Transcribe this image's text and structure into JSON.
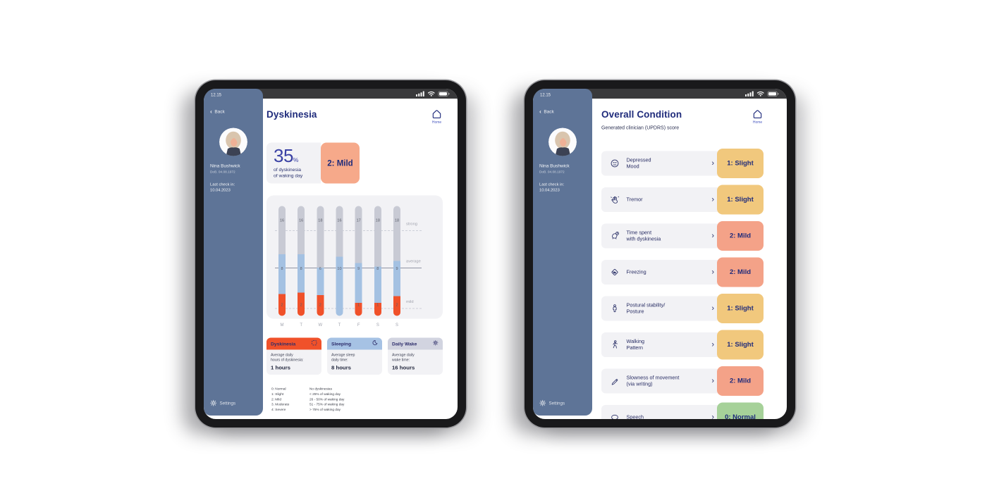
{
  "colors": {
    "navy": "#1f2b7b",
    "sidebar": "#5e7497",
    "salmon": "#f6a98a",
    "bar_gray": "#c8cad4",
    "bar_blue": "#a4c1e2",
    "bar_orange": "#f0512a",
    "badge_slight": "#f1c87d",
    "badge_mild": "#f4a288",
    "badge_normal": "#a6d199"
  },
  "sidebar": {
    "time": "12.15",
    "back_label": "Back",
    "patient_name": "Nina Bushwick",
    "patient_dob": "DoB. 04.08.1972",
    "last_check": "Last check in:\n10.04.2023",
    "settings_label": "Settings"
  },
  "status_icons": [
    "cellular-icon",
    "wifi-icon",
    "battery-icon"
  ],
  "left": {
    "title": "Dyskinesia",
    "home_label": "Home",
    "stat": {
      "value": "35",
      "unit": "%",
      "caption": "of dyskinesia\nof waking day",
      "severity_badge": "2: Mild"
    },
    "summary_cards": [
      {
        "title": "Dyskinesia",
        "icon": "frame-icon",
        "header_color": "#f0512a",
        "caption": "Average daily\nhours of dyskinesia:",
        "value": "1 hours"
      },
      {
        "title": "Sleeping",
        "icon": "moon-icon",
        "header_color": "#a6c2e4",
        "caption": "Average sleep\ndaily time:",
        "value": "8 hours"
      },
      {
        "title": "Daily Wake",
        "icon": "sun-icon",
        "header_color": "#d2d4e0",
        "caption": "Average daily\nwake time:",
        "value": "16 hours"
      }
    ],
    "legend": {
      "levels": [
        "0: Normal",
        "1: Slight",
        "2: Mild",
        "3. Moderate",
        "4: Severe"
      ],
      "descriptions": [
        "No dyskinesias",
        "< 25% of waking day",
        "26 - 50% of waking day",
        "51 - 75% of waking day",
        "> 75% of waking day"
      ]
    }
  },
  "right": {
    "title": "Overall Condition",
    "subtitle": "Generated clinician (UPDRS) score",
    "home_label": "Home",
    "score_colors": {
      "slight": "#f1c87d",
      "mild": "#f4a288",
      "normal": "#a6d199"
    },
    "rows": [
      {
        "icon": "depressed-mood-icon",
        "label": "Depressed\nMood",
        "score": "1: Slight",
        "level": "slight"
      },
      {
        "icon": "tremor-icon",
        "label": "Tremor",
        "score": "1: Slight",
        "level": "slight"
      },
      {
        "icon": "dyskinesia-time-icon",
        "label": "Time spent\nwith dyskinesia",
        "score": "2: Mild",
        "level": "mild"
      },
      {
        "icon": "freezing-icon",
        "label": "Freezing",
        "score": "2: Mild",
        "level": "mild"
      },
      {
        "icon": "posture-icon",
        "label": "Postural stability/\nPosture",
        "score": "1: Slight",
        "level": "slight"
      },
      {
        "icon": "walking-icon",
        "label": "Walking\nPattern",
        "score": "1: Slight",
        "level": "slight"
      },
      {
        "icon": "writing-icon",
        "label": "Slowness of movement\n(via writing)",
        "score": "2: Mild",
        "level": "mild"
      },
      {
        "icon": "speech-icon",
        "label": "Speech",
        "score": "0: Normal",
        "level": "normal"
      }
    ]
  },
  "chart_data": {
    "type": "bar",
    "subtype": "stacked-pill-columns",
    "categories": [
      "M",
      "T",
      "W",
      "T",
      "F",
      "S",
      "S"
    ],
    "series": [
      {
        "name": "strong",
        "color": "#c8cad4",
        "values": [
          16,
          16,
          18,
          16,
          17,
          18,
          18
        ]
      },
      {
        "name": "average",
        "color": "#a4c1e2",
        "values": [
          8,
          8,
          6,
          10,
          9,
          8,
          9
        ]
      },
      {
        "name": "mild",
        "color": "#f0512a",
        "values": [
          2,
          2,
          2,
          0,
          1,
          1,
          2
        ]
      }
    ],
    "segment_pct": {
      "strong": [
        44,
        44,
        56,
        46,
        52,
        55,
        50
      ],
      "average": [
        36,
        35,
        25,
        54,
        36,
        33,
        32
      ],
      "mild": [
        20,
        21,
        19,
        0,
        12,
        12,
        18
      ]
    },
    "right_axis_labels": [
      "strong",
      "average",
      "mild"
    ],
    "gridlines_pct": {
      "strong": 22,
      "average": 56,
      "mild": 93
    },
    "grid": "dashed bands at strong/mild, solid line at average",
    "legend_position": "right"
  }
}
